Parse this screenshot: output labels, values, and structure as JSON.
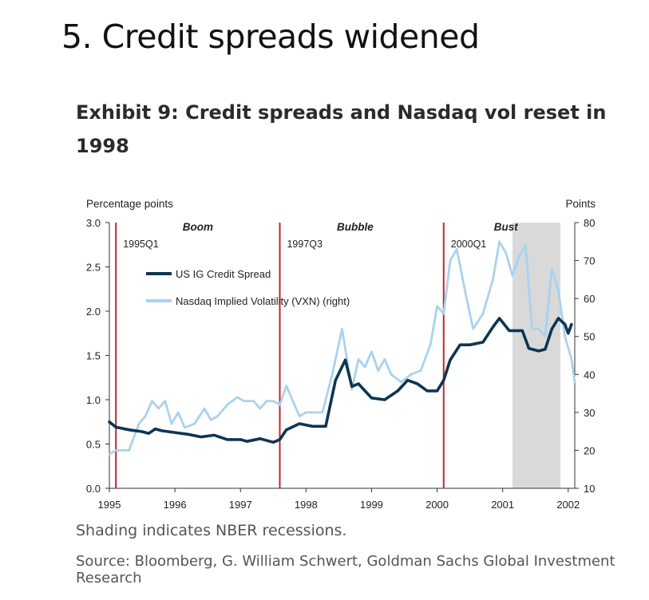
{
  "headline": "5. Credit spreads widened",
  "exhibit_title": "Exhibit 9: Credit spreads and Nasdaq vol reset in 1998",
  "note": "Shading indicates NBER recessions.",
  "source": "Source: Bloomberg, G. William Schwert, Goldman Sachs Global Investment Research",
  "colors": {
    "spread": "#0d3553",
    "vxn": "#a9d2ee",
    "marker": "#c0272d",
    "recession": "#d9d9d9"
  },
  "chart_data": {
    "type": "line",
    "left_axis_label": "Percentage points",
    "right_axis_label": "Points",
    "x_ticks": [
      1995,
      1996,
      1997,
      1998,
      1999,
      2000,
      2001,
      2002
    ],
    "x_range": [
      1995,
      2002.1
    ],
    "y_left": {
      "range": [
        0.0,
        3.0
      ],
      "ticks": [
        "0.0",
        "0.5",
        "1.0",
        "1.5",
        "2.0",
        "2.5",
        "3.0"
      ]
    },
    "y_right": {
      "range": [
        10,
        80
      ],
      "ticks": [
        "10",
        "20",
        "30",
        "40",
        "50",
        "60",
        "70",
        "80"
      ]
    },
    "phases": [
      {
        "label": "Boom",
        "x": 1996.35
      },
      {
        "label": "Bubble",
        "x": 1998.75
      },
      {
        "label": "Bust",
        "x": 2001.05
      }
    ],
    "markers": [
      {
        "label": "1995Q1",
        "x": 1995.1
      },
      {
        "label": "1997Q3",
        "x": 1997.6
      },
      {
        "label": "2000Q1",
        "x": 2000.1
      }
    ],
    "recession": {
      "start": 2001.15,
      "end": 2001.88
    },
    "series": [
      {
        "name": "US IG Credit Spread",
        "axis": "left",
        "x": [
          1995.0,
          1995.1,
          1995.3,
          1995.5,
          1995.6,
          1995.7,
          1995.8,
          1996.0,
          1996.2,
          1996.4,
          1996.6,
          1996.8,
          1997.0,
          1997.1,
          1997.3,
          1997.5,
          1997.6,
          1997.7,
          1997.9,
          1998.1,
          1998.3,
          1998.45,
          1998.6,
          1998.7,
          1998.8,
          1998.9,
          1999.0,
          1999.2,
          1999.4,
          1999.55,
          1999.7,
          1999.85,
          2000.0,
          2000.1,
          2000.2,
          2000.35,
          2000.5,
          2000.7,
          2000.85,
          2000.95,
          2001.1,
          2001.25,
          2001.3,
          2001.4,
          2001.55,
          2001.65,
          2001.75,
          2001.85,
          2001.95,
          2002.0,
          2002.05
        ],
        "values": [
          0.75,
          0.69,
          0.66,
          0.64,
          0.62,
          0.67,
          0.65,
          0.63,
          0.61,
          0.58,
          0.6,
          0.55,
          0.55,
          0.53,
          0.56,
          0.52,
          0.55,
          0.66,
          0.73,
          0.7,
          0.7,
          1.22,
          1.45,
          1.15,
          1.18,
          1.1,
          1.02,
          1.0,
          1.1,
          1.22,
          1.18,
          1.1,
          1.1,
          1.22,
          1.45,
          1.62,
          1.62,
          1.65,
          1.82,
          1.92,
          1.78,
          1.78,
          1.78,
          1.58,
          1.55,
          1.57,
          1.8,
          1.92,
          1.85,
          1.75,
          1.85
        ]
      },
      {
        "name": "Nasdaq Implied Volatility (VXN) (right)",
        "axis": "right",
        "x": [
          1995.0,
          1995.1,
          1995.3,
          1995.45,
          1995.55,
          1995.65,
          1995.75,
          1995.85,
          1995.95,
          1996.05,
          1996.15,
          1996.3,
          1996.45,
          1996.55,
          1996.65,
          1996.8,
          1996.95,
          1997.05,
          1997.2,
          1997.3,
          1997.4,
          1997.5,
          1997.6,
          1997.7,
          1997.8,
          1997.9,
          1998.0,
          1998.1,
          1998.25,
          1998.4,
          1998.55,
          1998.7,
          1998.8,
          1998.9,
          1999.0,
          1999.1,
          1999.2,
          1999.3,
          1999.45,
          1999.6,
          1999.75,
          1999.9,
          2000.0,
          2000.1,
          2000.2,
          2000.3,
          2000.45,
          2000.55,
          2000.7,
          2000.85,
          2000.95,
          2001.05,
          2001.15,
          2001.25,
          2001.35,
          2001.45,
          2001.55,
          2001.65,
          2001.75,
          2001.85,
          2001.95,
          2002.05,
          2002.1
        ],
        "values": [
          19,
          20,
          20,
          27,
          29,
          33,
          31,
          33,
          27,
          30,
          26,
          27,
          31,
          28,
          29,
          32,
          34,
          33,
          33,
          31,
          33,
          33,
          32,
          37,
          33,
          29,
          30,
          30,
          30,
          40,
          52,
          36,
          44,
          42,
          46,
          41,
          44,
          40,
          38,
          40,
          41,
          48,
          58,
          56,
          70,
          73,
          60,
          52,
          56,
          65,
          75,
          72,
          66,
          71,
          74,
          52,
          52,
          50,
          68,
          62,
          50,
          44,
          38
        ]
      }
    ]
  }
}
